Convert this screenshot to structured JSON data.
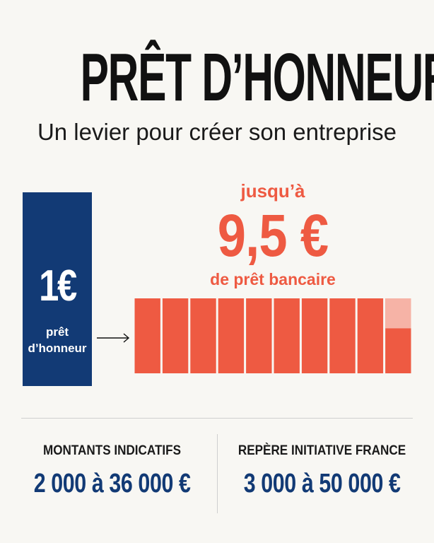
{
  "header": {
    "title": "PRÊT D’HONNEUR",
    "subtitle": "Un levier pour créer son entreprise"
  },
  "comparison": {
    "honor_loan": {
      "amount": "1€",
      "label": "prêt d’honneur"
    },
    "bank_loan": {
      "prefix": "jusqu’à",
      "amount": "9,5 €",
      "label": "de prêt bancaire",
      "units": 9.5
    }
  },
  "stats": [
    {
      "label": "MONTANTS INDICATIFS",
      "value": "2 000 à 36 000 €"
    },
    {
      "label": "REPÈRE INITIATIVE FRANCE",
      "value": "3 000 à 50 000 €"
    }
  ],
  "colors": {
    "background": "#f8f7f3",
    "navy": "#123a75",
    "coral": "#ee5a42",
    "coral_light": "#f6b3a6",
    "text": "#111111"
  },
  "icons": {
    "arrow": "arrow-right-icon"
  }
}
